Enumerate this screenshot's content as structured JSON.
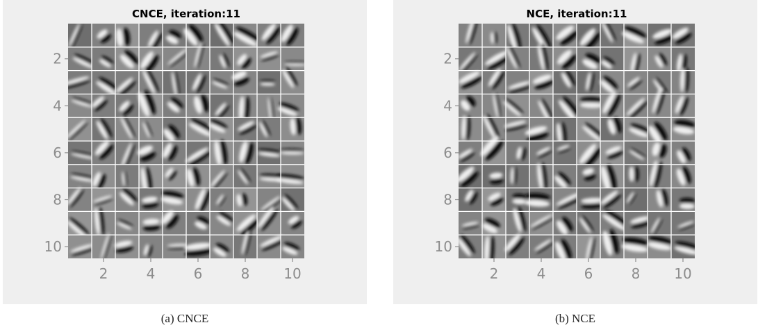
{
  "figures": [
    {
      "title": "CNCE, iteration:11",
      "caption": "(a) CNCE",
      "x_ticks": [
        "2",
        "4",
        "6",
        "8",
        "10"
      ],
      "y_ticks": [
        "2",
        "4",
        "6",
        "8",
        "10"
      ]
    },
    {
      "title": "NCE, iteration:11",
      "caption": "(b) NCE",
      "x_ticks": [
        "2",
        "4",
        "6",
        "8",
        "10"
      ],
      "y_ticks": [
        "2",
        "4",
        "6",
        "8",
        "10"
      ]
    }
  ],
  "colors": {
    "panel_bg": "#efefef",
    "tile_gray": "#7b7b7b",
    "grid_line": "#ffffff",
    "tick_text": "#8c8c8c",
    "title_text": "#000000"
  },
  "chart_data": [
    {
      "type": "heatmap",
      "title": "CNCE, iteration:11",
      "xlabel": "",
      "ylabel": "",
      "grid_size": [
        10,
        10
      ],
      "xlim": [
        0.5,
        10.5
      ],
      "ylim": [
        10.5,
        0.5
      ],
      "x_ticks": [
        2,
        4,
        6,
        8,
        10
      ],
      "y_ticks": [
        2,
        4,
        6,
        8,
        10
      ],
      "grid": true,
      "cell_content": "learned grayscale filter patches (10x10 mosaic)"
    },
    {
      "type": "heatmap",
      "title": "NCE, iteration:11",
      "xlabel": "",
      "ylabel": "",
      "grid_size": [
        10,
        10
      ],
      "xlim": [
        0.5,
        10.5
      ],
      "ylim": [
        10.5,
        0.5
      ],
      "x_ticks": [
        2,
        4,
        6,
        8,
        10
      ],
      "y_ticks": [
        2,
        4,
        6,
        8,
        10
      ],
      "grid": true,
      "cell_content": "learned grayscale filter patches (10x10 mosaic)"
    }
  ]
}
